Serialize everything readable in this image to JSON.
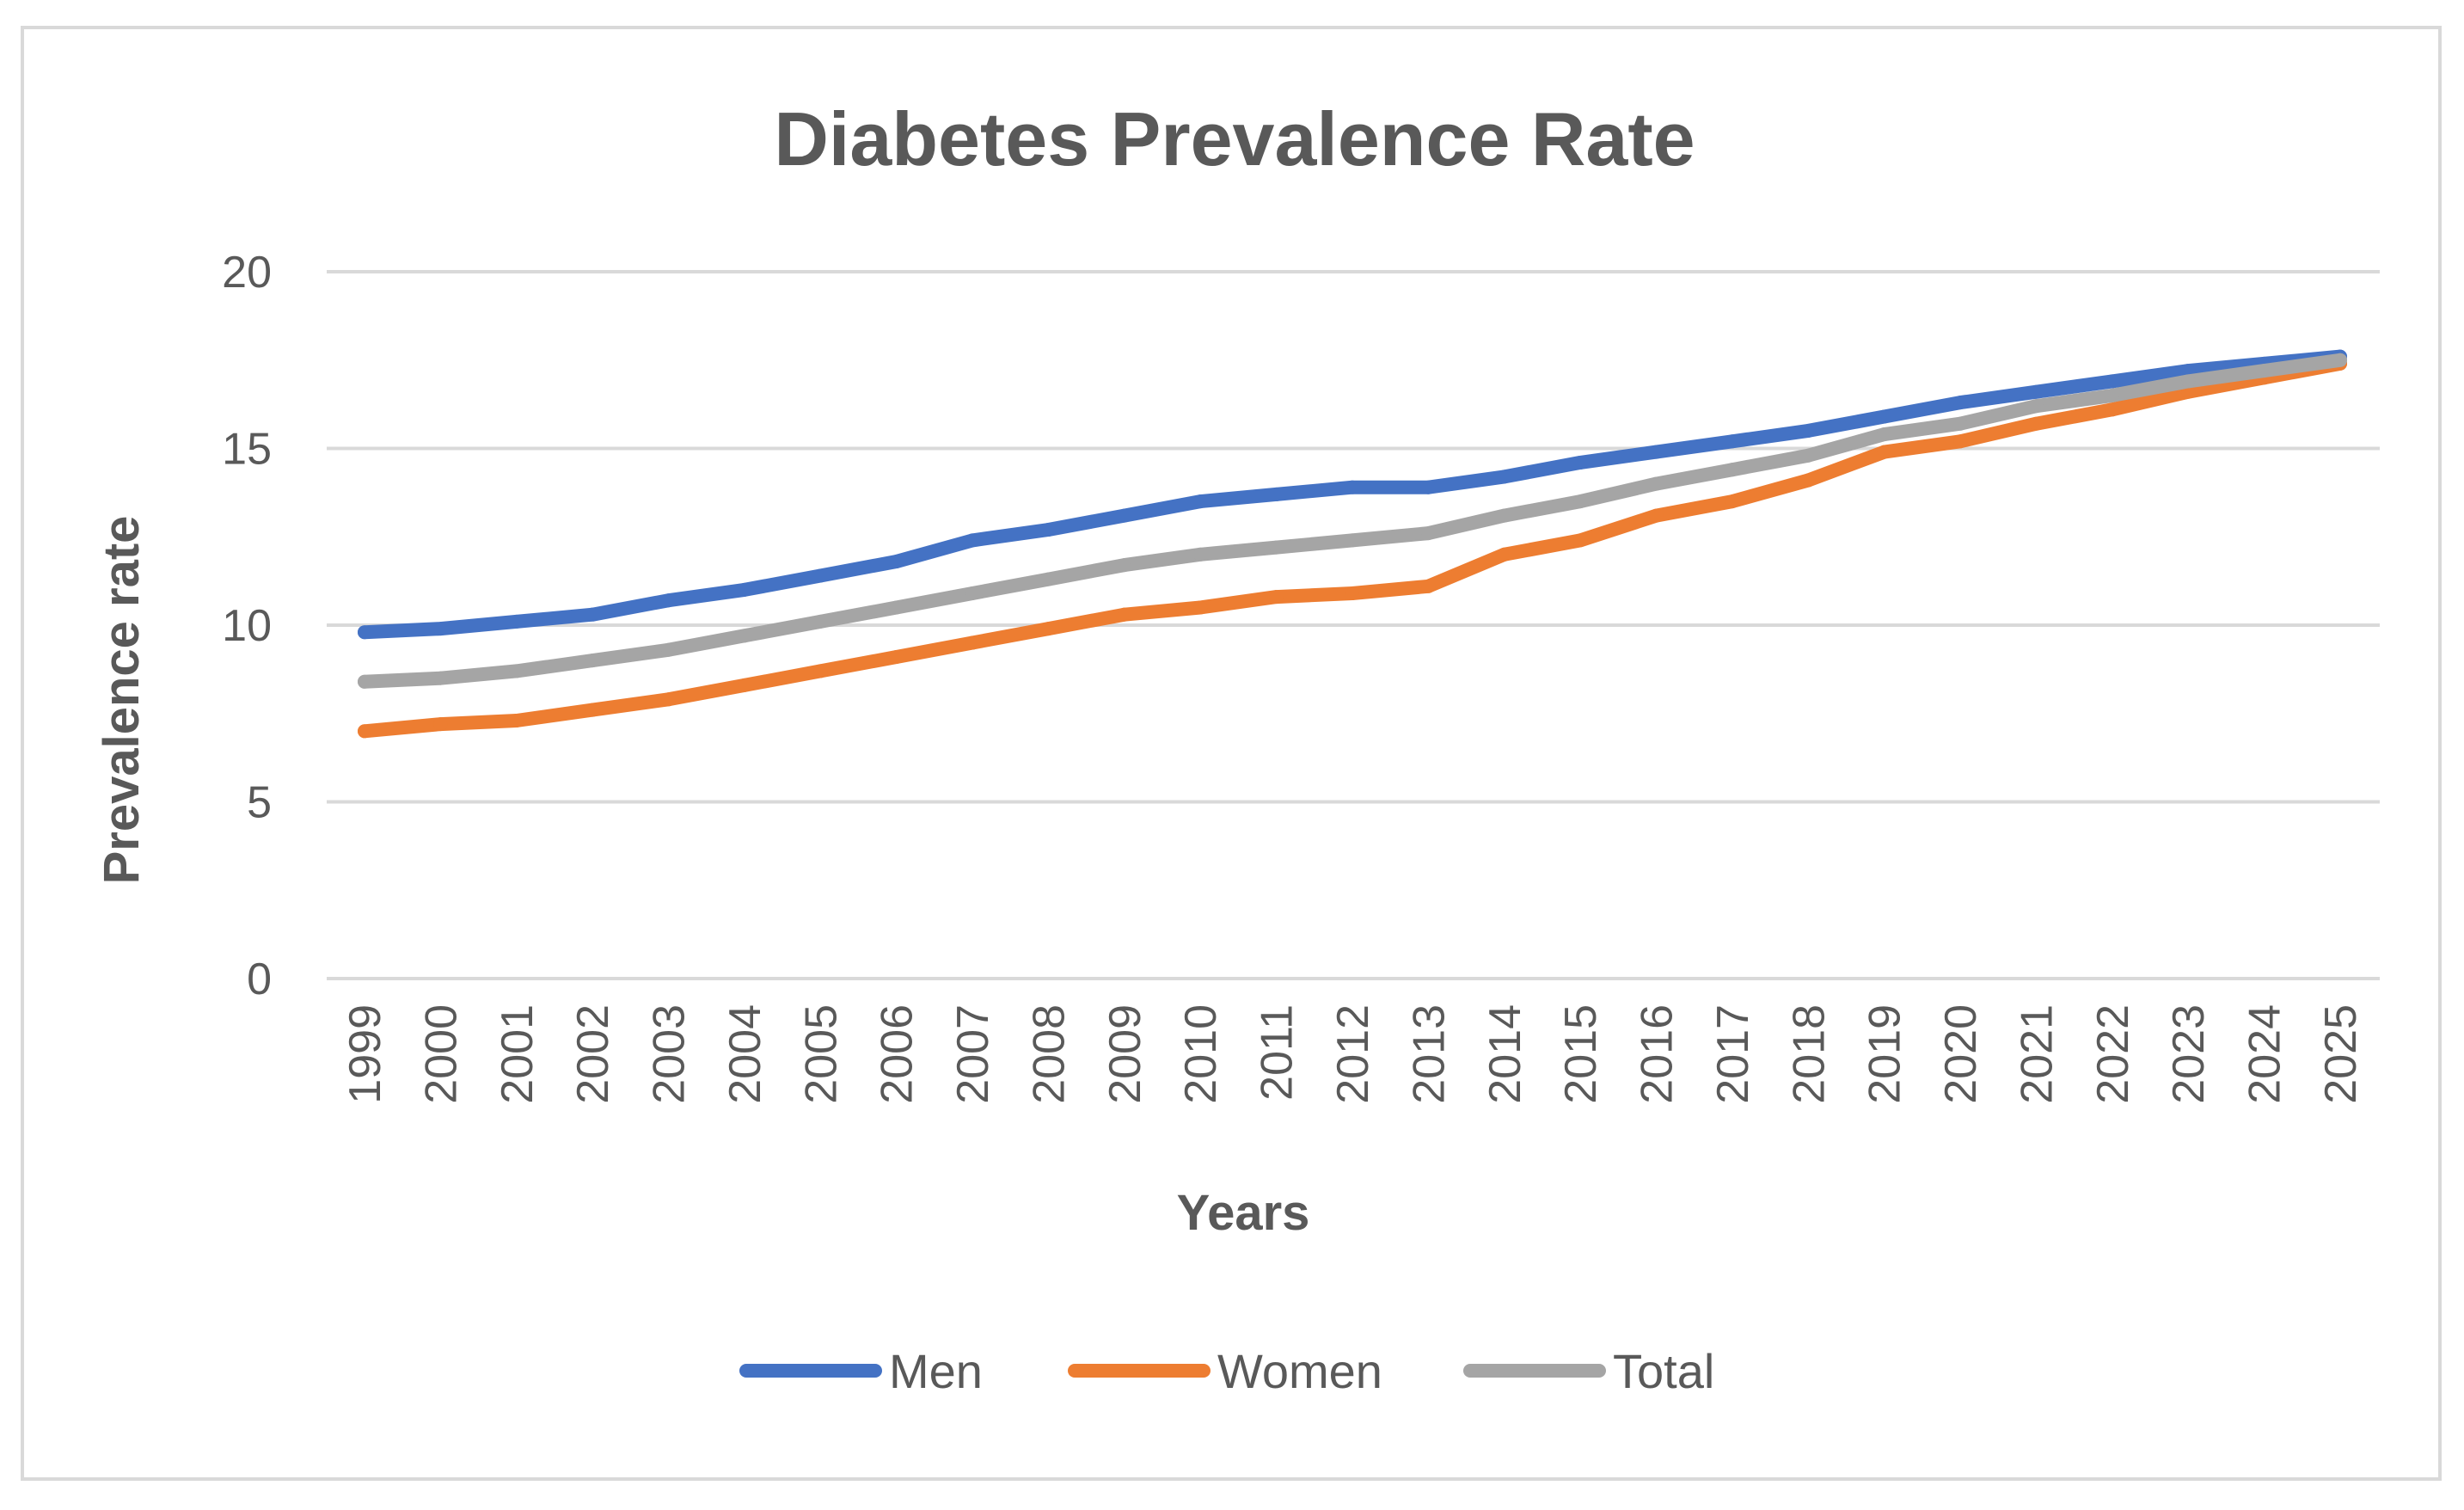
{
  "chart_data": {
    "type": "line",
    "title": "Diabetes Prevalence Rate",
    "xlabel": "Years",
    "ylabel": "Prevalence rate",
    "ylim": [
      0,
      20
    ],
    "yticks": [
      0,
      5,
      10,
      15,
      20
    ],
    "grid": true,
    "legend_position": "bottom",
    "categories": [
      "1999",
      "2000",
      "2001",
      "2002",
      "2003",
      "2004",
      "2005",
      "2006",
      "2007",
      "2008",
      "2009",
      "2010",
      "2011",
      "2012",
      "2013",
      "2014",
      "2015",
      "2016",
      "2017",
      "2018",
      "2019",
      "2020",
      "2021",
      "2022",
      "2023",
      "2024",
      "2025"
    ],
    "series": [
      {
        "name": "Men",
        "color": "#4472c4",
        "values": [
          9.8,
          9.9,
          10.1,
          10.3,
          10.7,
          11.0,
          11.4,
          11.8,
          12.4,
          12.7,
          13.1,
          13.5,
          13.7,
          13.9,
          13.9,
          14.2,
          14.6,
          14.9,
          15.2,
          15.5,
          15.9,
          16.3,
          16.6,
          16.9,
          17.2,
          17.4,
          17.6
        ],
        "legend_icon": "line-swatch"
      },
      {
        "name": "Women",
        "color": "#ed7d31",
        "values": [
          7.0,
          7.2,
          7.3,
          7.6,
          7.9,
          8.3,
          8.7,
          9.1,
          9.5,
          9.9,
          10.3,
          10.5,
          10.8,
          10.9,
          11.1,
          12.0,
          12.4,
          13.1,
          13.5,
          14.1,
          14.9,
          15.2,
          15.7,
          16.1,
          16.6,
          17.0,
          17.4
        ],
        "legend_icon": "line-swatch"
      },
      {
        "name": "Total",
        "color": "#a5a5a5",
        "values": [
          8.4,
          8.5,
          8.7,
          9.0,
          9.3,
          9.7,
          10.1,
          10.5,
          10.9,
          11.3,
          11.7,
          12.0,
          12.2,
          12.4,
          12.6,
          13.1,
          13.5,
          14.0,
          14.4,
          14.8,
          15.4,
          15.7,
          16.2,
          16.5,
          16.9,
          17.2,
          17.5
        ],
        "legend_icon": "line-swatch"
      }
    ]
  }
}
